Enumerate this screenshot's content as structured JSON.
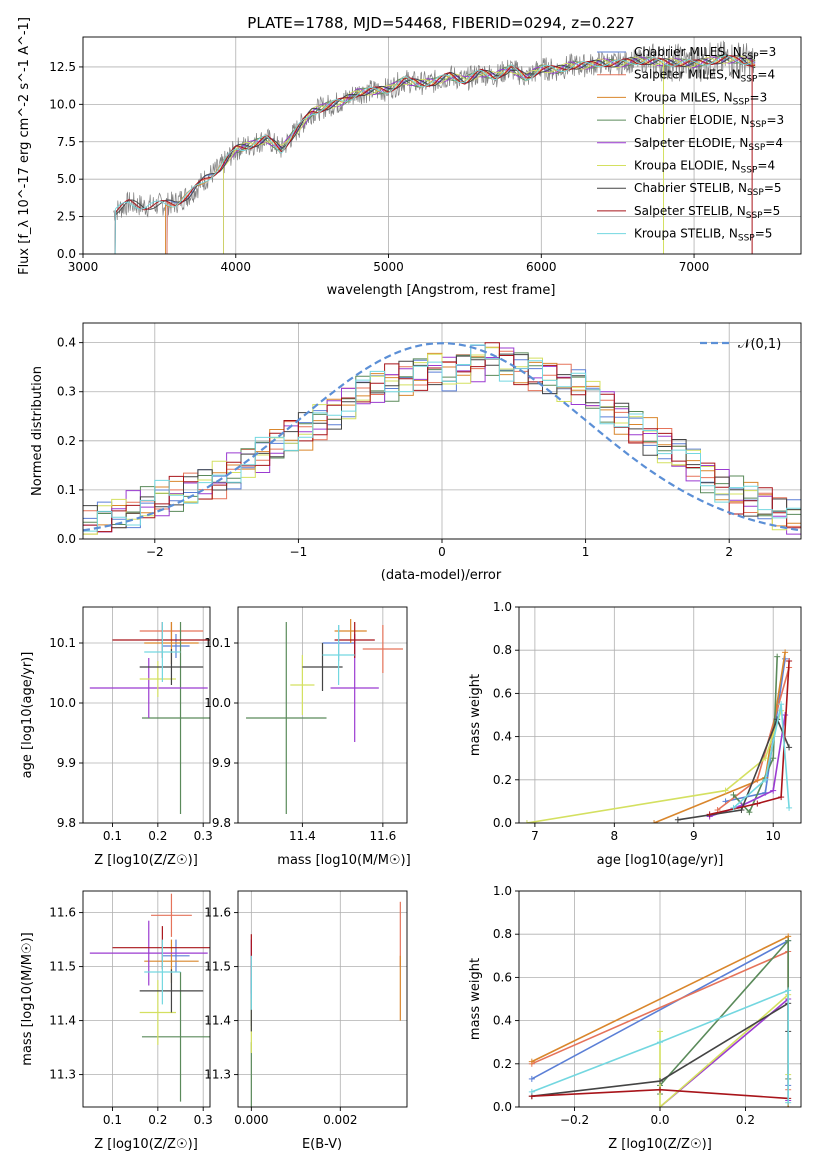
{
  "colors": {
    "Chabrier MILES": "#5b7fd6",
    "Salpeter MILES": "#e5735a",
    "Kroupa MILES": "#d9862c",
    "Chabrier ELODIE": "#5a8a5a",
    "Salpeter ELODIE": "#9b3bd1",
    "Kroupa ELODIE": "#d4e060",
    "Chabrier STELIB": "#444444",
    "Salpeter STELIB": "#a8141a",
    "Kroupa STELIB": "#73d7e0"
  },
  "chart_data": [
    {
      "id": "spectrum",
      "type": "line",
      "title": "PLATE=1788, MJD=54468, FIBERID=0294, z=0.227",
      "xlabel": "wavelength [Angstrom, rest frame]",
      "ylabel": "Flux [f_λ 10^-17 erg cm^-2 s^-1 A^-1]",
      "xlim": [
        3000,
        7700
      ],
      "ylim": [
        0,
        14.5
      ],
      "xticks": [
        3000,
        4000,
        5000,
        6000,
        7000
      ],
      "yticks": [
        0.0,
        2.5,
        5.0,
        7.5,
        10.0,
        12.5
      ],
      "xtick_labels": [
        "3000",
        "4000",
        "5000",
        "6000",
        "7000"
      ],
      "ytick_labels": [
        "0.0",
        "2.5",
        "5.0",
        "7.5",
        "10.0",
        "12.5"
      ],
      "legend_position": "right",
      "legend": [
        {
          "model": "Chabrier MILES",
          "label": "Chabrier MILES, N",
          "sub": "SSP",
          "tail": "=3"
        },
        {
          "model": "Salpeter MILES",
          "label": "Salpeter MILES, N",
          "sub": "SSP",
          "tail": "=4"
        },
        {
          "model": "Kroupa MILES",
          "label": "Kroupa MILES, N",
          "sub": "SSP",
          "tail": "=3"
        },
        {
          "model": "Chabrier ELODIE",
          "label": "Chabrier ELODIE, N",
          "sub": "SSP",
          "tail": "=3"
        },
        {
          "model": "Salpeter ELODIE",
          "label": "Salpeter ELODIE, N",
          "sub": "SSP",
          "tail": "=4"
        },
        {
          "model": "Kroupa ELODIE",
          "label": "Kroupa ELODIE, N",
          "sub": "SSP",
          "tail": "=4"
        },
        {
          "model": "Chabrier STELIB",
          "label": "Chabrier STELIB, N",
          "sub": "SSP",
          "tail": "=5"
        },
        {
          "model": "Salpeter STELIB",
          "label": "Salpeter STELIB, N",
          "sub": "SSP",
          "tail": "=5"
        },
        {
          "model": "Kroupa STELIB",
          "label": "Kroupa STELIB, N",
          "sub": "SSP",
          "tail": "=5"
        }
      ],
      "data_color": "#808080",
      "data_x": [
        3200,
        3300,
        3400,
        3500,
        3600,
        3700,
        3800,
        3900,
        4000,
        4100,
        4200,
        4300,
        4400,
        4500,
        4600,
        4700,
        4800,
        4900,
        5000,
        5100,
        5200,
        5300,
        5400,
        5500,
        5600,
        5700,
        5800,
        5900,
        6000,
        6100,
        6200,
        6300,
        6400,
        6500,
        6600,
        6700,
        6800,
        6900,
        7000,
        7100,
        7200,
        7300,
        7400
      ],
      "data_y": [
        2.8,
        3.4,
        3.2,
        3.3,
        3.4,
        4.0,
        5.0,
        5.8,
        7.0,
        7.3,
        7.7,
        7.0,
        8.3,
        9.5,
        9.9,
        10.2,
        10.8,
        10.9,
        11.0,
        11.6,
        11.4,
        11.5,
        11.9,
        11.6,
        12.1,
        11.9,
        12.4,
        11.8,
        12.4,
        12.3,
        12.6,
        12.6,
        12.8,
        12.7,
        12.9,
        12.9,
        12.8,
        12.8,
        12.7,
        12.9,
        13.0,
        13.0,
        12.7
      ],
      "model_starts": {
        "Chabrier MILES": 3550,
        "Salpeter MILES": 3550,
        "Kroupa MILES": 3540,
        "Chabrier ELODIE": 3920,
        "Salpeter ELODIE": 3920,
        "Kroupa ELODIE": 3920,
        "Chabrier STELIB": 3210,
        "Salpeter STELIB": 3210,
        "Kroupa STELIB": 3210
      }
    },
    {
      "id": "residuals",
      "type": "histogram",
      "xlabel": "(data-model)/error",
      "ylabel": "Normed distribution",
      "xlim": [
        -2.5,
        2.5
      ],
      "ylim": [
        0,
        0.44
      ],
      "xticks": [
        -2,
        -1,
        0,
        1,
        2
      ],
      "yticks": [
        0.0,
        0.1,
        0.2,
        0.3,
        0.4
      ],
      "xtick_labels": [
        "−2",
        "−1",
        "0",
        "1",
        "2"
      ],
      "ytick_labels": [
        "0.0",
        "0.1",
        "0.2",
        "0.3",
        "0.4"
      ],
      "bin_width": 0.1,
      "bin_start": -2.5,
      "base_values": [
        0.03,
        0.04,
        0.05,
        0.06,
        0.07,
        0.08,
        0.09,
        0.1,
        0.11,
        0.12,
        0.14,
        0.16,
        0.17,
        0.19,
        0.21,
        0.22,
        0.24,
        0.26,
        0.28,
        0.3,
        0.31,
        0.32,
        0.33,
        0.34,
        0.35,
        0.34,
        0.35,
        0.36,
        0.37,
        0.36,
        0.35,
        0.34,
        0.33,
        0.32,
        0.31,
        0.29,
        0.27,
        0.25,
        0.23,
        0.21,
        0.19,
        0.17,
        0.15,
        0.13,
        0.11,
        0.09,
        0.08,
        0.07,
        0.05,
        0.04
      ],
      "gaussian": {
        "label": "𝒩(0,1)",
        "mean": 0,
        "sigma": 1,
        "color": "#5b8fd6"
      },
      "legend_position": "upper right"
    },
    {
      "id": "age-vs-Z",
      "type": "errorbar",
      "xlabel": "Z [log10(Z/Z☉)]",
      "ylabel": "age  [log10(age/yr)]",
      "xlim": [
        0.035,
        0.315
      ],
      "ylim": [
        9.8,
        10.16
      ],
      "xticks": [
        0.1,
        0.2,
        0.3
      ],
      "yticks": [
        9.8,
        9.9,
        10.0,
        10.1
      ],
      "xtick_labels": [
        "0.1",
        "0.2",
        "0.3"
      ],
      "ytick_labels": [
        "9.8",
        "9.9",
        "10.0",
        "10.1"
      ],
      "points": [
        {
          "model": "Chabrier MILES",
          "x": 0.24,
          "y": 10.095,
          "xerr": 0.03,
          "yerr": 0.02
        },
        {
          "model": "Salpeter MILES",
          "x": 0.23,
          "y": 10.12,
          "xerr": 0.07,
          "yerr": 0.015
        },
        {
          "model": "Kroupa MILES",
          "x": 0.23,
          "y": 10.1,
          "xerr": 0.06,
          "yerr": 0.035
        },
        {
          "model": "Chabrier ELODIE",
          "x": 0.25,
          "y": 9.975,
          "xerr": 0.085,
          "yerr": 0.16
        },
        {
          "model": "Salpeter ELODIE",
          "x": 0.18,
          "y": 10.025,
          "xerr": 0.13,
          "yerr": 0.05
        },
        {
          "model": "Kroupa ELODIE",
          "x": 0.2,
          "y": 10.04,
          "xerr": 0.04,
          "yerr": 0.03
        },
        {
          "model": "Chabrier STELIB",
          "x": 0.23,
          "y": 10.06,
          "xerr": 0.07,
          "yerr": 0.03
        },
        {
          "model": "Salpeter STELIB",
          "x": 0.21,
          "y": 10.105,
          "xerr": 0.11,
          "yerr": 0.03
        },
        {
          "model": "Kroupa STELIB",
          "x": 0.21,
          "y": 10.085,
          "xerr": 0.04,
          "yerr": 0.05
        }
      ]
    },
    {
      "id": "age-vs-mass",
      "type": "errorbar",
      "xlabel": "mass [log10(M/M☉)]",
      "ylabel": "",
      "xlim": [
        11.24,
        11.66
      ],
      "ylim": [
        9.8,
        10.16
      ],
      "xticks": [
        11.4,
        11.6
      ],
      "yticks": [
        9.8,
        9.9,
        10.0,
        10.1
      ],
      "xtick_labels": [
        "11.4",
        "11.6"
      ],
      "ytick_labels": [
        "9.8",
        "9.9",
        "10.0",
        "10.1"
      ],
      "points": [
        {
          "model": "Chabrier MILES",
          "x": 11.49,
          "y": 10.1,
          "xerr": 0.04,
          "yerr": 0.03
        },
        {
          "model": "Salpeter MILES",
          "x": 11.6,
          "y": 10.09,
          "xerr": 0.05,
          "yerr": 0.04
        },
        {
          "model": "Kroupa MILES",
          "x": 11.52,
          "y": 10.12,
          "xerr": 0.04,
          "yerr": 0.02
        },
        {
          "model": "Chabrier ELODIE",
          "x": 11.36,
          "y": 9.975,
          "xerr": 0.1,
          "yerr": 0.16
        },
        {
          "model": "Salpeter ELODIE",
          "x": 11.53,
          "y": 10.025,
          "xerr": 0.06,
          "yerr": 0.09
        },
        {
          "model": "Kroupa ELODIE",
          "x": 11.4,
          "y": 10.03,
          "xerr": 0.03,
          "yerr": 0.05
        },
        {
          "model": "Chabrier STELIB",
          "x": 11.45,
          "y": 10.06,
          "xerr": 0.05,
          "yerr": 0.04
        },
        {
          "model": "Salpeter STELIB",
          "x": 11.53,
          "y": 10.105,
          "xerr": 0.05,
          "yerr": 0.03
        },
        {
          "model": "Kroupa STELIB",
          "x": 11.49,
          "y": 10.08,
          "xerr": 0.04,
          "yerr": 0.05
        }
      ]
    },
    {
      "id": "mass-weight-vs-age",
      "type": "line",
      "xlabel": "age  [log10(age/yr)]",
      "ylabel": "mass weight",
      "xlim": [
        6.8,
        10.35
      ],
      "ylim": [
        0,
        1.0
      ],
      "xticks": [
        7,
        8,
        9,
        10
      ],
      "yticks": [
        0.0,
        0.2,
        0.4,
        0.6,
        0.8,
        1.0
      ],
      "xtick_labels": [
        "7",
        "8",
        "9",
        "10"
      ],
      "ytick_labels": [
        "0.0",
        "0.2",
        "0.4",
        "0.6",
        "0.8",
        "1.0"
      ],
      "series": [
        {
          "model": "Chabrier MILES",
          "x": [
            9.4,
            9.9,
            10.15
          ],
          "y": [
            0.1,
            0.14,
            0.76
          ]
        },
        {
          "model": "Salpeter MILES",
          "x": [
            9.3,
            9.8,
            10.2
          ],
          "y": [
            0.06,
            0.2,
            0.72
          ]
        },
        {
          "model": "Kroupa MILES",
          "x": [
            8.5,
            9.9,
            10.15
          ],
          "y": [
            0.0,
            0.21,
            0.79
          ]
        },
        {
          "model": "Chabrier ELODIE",
          "x": [
            9.5,
            9.7,
            10.0,
            10.05
          ],
          "y": [
            0.13,
            0.05,
            0.3,
            0.77
          ]
        },
        {
          "model": "Salpeter ELODIE",
          "x": [
            9.2,
            9.6,
            10.0,
            10.15
          ],
          "y": [
            0.03,
            0.08,
            0.15,
            0.5
          ]
        },
        {
          "model": "Kroupa ELODIE",
          "x": [
            6.9,
            9.4,
            9.9,
            10.1
          ],
          "y": [
            0.0,
            0.15,
            0.3,
            0.52
          ]
        },
        {
          "model": "Chabrier STELIB",
          "x": [
            8.8,
            9.6,
            10.05,
            10.2
          ],
          "y": [
            0.015,
            0.06,
            0.48,
            0.35
          ]
        },
        {
          "model": "Salpeter STELIB",
          "x": [
            9.2,
            9.8,
            10.1,
            10.2
          ],
          "y": [
            0.04,
            0.09,
            0.12,
            0.75
          ]
        },
        {
          "model": "Kroupa STELIB",
          "x": [
            9.5,
            9.9,
            10.1,
            10.2
          ],
          "y": [
            0.07,
            0.2,
            0.55,
            0.07
          ]
        }
      ]
    },
    {
      "id": "mass-vs-Z",
      "type": "errorbar",
      "xlabel": "Z [log10(Z/Z☉)]",
      "ylabel": "mass [log10(M/M☉)]",
      "xlim": [
        0.035,
        0.315
      ],
      "ylim": [
        11.24,
        11.64
      ],
      "xticks": [
        0.1,
        0.2,
        0.3
      ],
      "yticks": [
        11.3,
        11.4,
        11.5,
        11.6
      ],
      "xtick_labels": [
        "0.1",
        "0.2",
        "0.3"
      ],
      "ytick_labels": [
        "11.3",
        "11.4",
        "11.5",
        "11.6"
      ],
      "points": [
        {
          "model": "Chabrier MILES",
          "x": 0.24,
          "y": 11.52,
          "xerr": 0.03,
          "yerr": 0.03
        },
        {
          "model": "Salpeter MILES",
          "x": 0.23,
          "y": 11.595,
          "xerr": 0.045,
          "yerr": 0.04
        },
        {
          "model": "Kroupa MILES",
          "x": 0.23,
          "y": 11.51,
          "xerr": 0.06,
          "yerr": 0.04
        },
        {
          "model": "Chabrier ELODIE",
          "x": 0.25,
          "y": 11.37,
          "xerr": 0.085,
          "yerr": 0.12
        },
        {
          "model": "Salpeter ELODIE",
          "x": 0.18,
          "y": 11.525,
          "xerr": 0.13,
          "yerr": 0.06
        },
        {
          "model": "Kroupa ELODIE",
          "x": 0.2,
          "y": 11.415,
          "xerr": 0.04,
          "yerr": 0.06
        },
        {
          "model": "Chabrier STELIB",
          "x": 0.23,
          "y": 11.455,
          "xerr": 0.07,
          "yerr": 0.04
        },
        {
          "model": "Salpeter STELIB",
          "x": 0.21,
          "y": 11.535,
          "xerr": 0.11,
          "yerr": 0.04
        },
        {
          "model": "Kroupa STELIB",
          "x": 0.21,
          "y": 11.49,
          "xerr": 0.04,
          "yerr": 0.06
        }
      ]
    },
    {
      "id": "mass-vs-ebv",
      "type": "errorbar",
      "xlabel": "E(B-V)",
      "ylabel": "",
      "xlim": [
        -0.0003,
        0.0035
      ],
      "ylim": [
        11.24,
        11.64
      ],
      "xticks": [
        0.0,
        0.002
      ],
      "yticks": [
        11.3,
        11.4,
        11.5,
        11.6
      ],
      "xtick_labels": [
        "0.000",
        "0.002"
      ],
      "ytick_labels": [
        "11.3",
        "11.4",
        "11.5",
        "11.6"
      ],
      "points": [
        {
          "model": "Chabrier MILES",
          "x": 0.0,
          "y": 11.45,
          "xerr": 0,
          "yerr": 0.06
        },
        {
          "model": "Salpeter MILES",
          "x": 0.00335,
          "y": 11.56,
          "xerr": 0,
          "yerr": 0.06
        },
        {
          "model": "Kroupa MILES",
          "x": 0.00335,
          "y": 11.46,
          "xerr": 0,
          "yerr": 0.06
        },
        {
          "model": "Chabrier ELODIE",
          "x": 0.0,
          "y": 11.3,
          "xerr": 0,
          "yerr": 0.06
        },
        {
          "model": "Salpeter ELODIE",
          "x": 0.0,
          "y": 11.5,
          "xerr": 0,
          "yerr": 0.05
        },
        {
          "model": "Kroupa ELODIE",
          "x": 0.0,
          "y": 11.39,
          "xerr": 0,
          "yerr": 0.05
        },
        {
          "model": "Chabrier STELIB",
          "x": 0.0,
          "y": 11.43,
          "xerr": 0,
          "yerr": 0.05
        },
        {
          "model": "Salpeter STELIB",
          "x": 0.0,
          "y": 11.52,
          "xerr": 0,
          "yerr": 0.04
        },
        {
          "model": "Kroupa STELIB",
          "x": 0.0,
          "y": 11.47,
          "xerr": 0,
          "yerr": 0.05
        }
      ]
    },
    {
      "id": "mass-weight-vs-Z",
      "type": "line",
      "xlabel": "Z [log10(Z/Z☉)]",
      "ylabel": "mass weight",
      "xlim": [
        -0.33,
        0.33
      ],
      "ylim": [
        0,
        1.0
      ],
      "xticks": [
        -0.2,
        0.0,
        0.2
      ],
      "yticks": [
        0.0,
        0.2,
        0.4,
        0.6,
        0.8,
        1.0
      ],
      "xtick_labels": [
        "−0.2",
        "0.0",
        "0.2"
      ],
      "ytick_labels": [
        "0.0",
        "0.2",
        "0.4",
        "0.6",
        "0.8",
        "1.0"
      ],
      "series": [
        {
          "model": "Chabrier MILES",
          "x": [
            -0.3,
            0.3,
            0.3
          ],
          "y": [
            0.13,
            0.77,
            0.1
          ]
        },
        {
          "model": "Salpeter MILES",
          "x": [
            -0.3,
            0.3,
            0.3
          ],
          "y": [
            0.2,
            0.72,
            0.08
          ]
        },
        {
          "model": "Kroupa MILES",
          "x": [
            -0.3,
            0.3,
            0.3
          ],
          "y": [
            0.21,
            0.79,
            0.0
          ]
        },
        {
          "model": "Chabrier ELODIE",
          "x": [
            0.0,
            0.0,
            0.3,
            0.3
          ],
          "y": [
            0.06,
            0.1,
            0.77,
            0.13
          ]
        },
        {
          "model": "Salpeter ELODIE",
          "x": [
            0.0,
            0.3,
            0.3
          ],
          "y": [
            0.0,
            0.5,
            0.03
          ]
        },
        {
          "model": "Kroupa ELODIE",
          "x": [
            0.0,
            0.0,
            0.3,
            0.3
          ],
          "y": [
            0.35,
            0.0,
            0.52,
            0.15
          ]
        },
        {
          "model": "Chabrier STELIB",
          "x": [
            -0.3,
            0.0,
            0.3,
            0.3
          ],
          "y": [
            0.05,
            0.12,
            0.48,
            0.35
          ]
        },
        {
          "model": "Salpeter STELIB",
          "x": [
            -0.3,
            0.0,
            0.3
          ],
          "y": [
            0.05,
            0.08,
            0.04
          ]
        },
        {
          "model": "Kroupa STELIB",
          "x": [
            -0.3,
            0.0,
            0.3,
            0.3
          ],
          "y": [
            0.07,
            0.3,
            0.54,
            0.02
          ]
        }
      ]
    }
  ]
}
